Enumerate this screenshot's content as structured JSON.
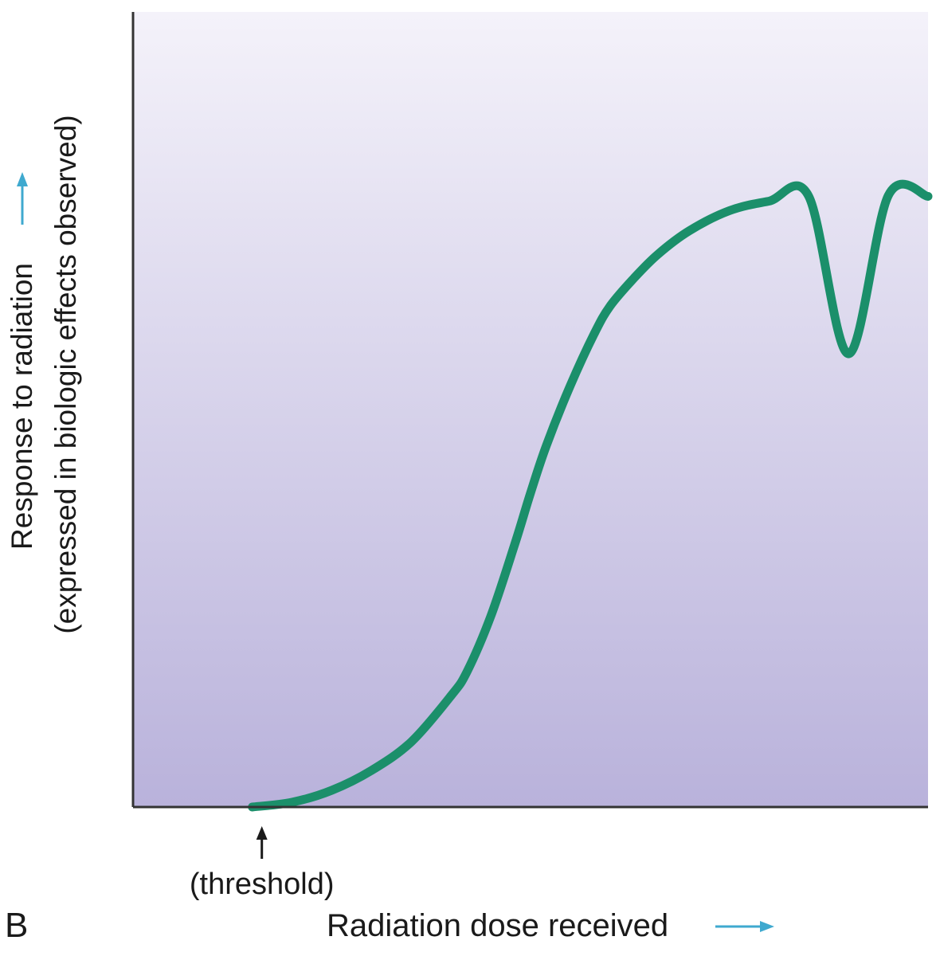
{
  "chart_data": {
    "type": "line",
    "panel_label": "B",
    "title": "",
    "ylabel": [
      "Response to radiation",
      "(expressed in biologic effects observed)"
    ],
    "xlabel": "Radiation dose received",
    "annotation": {
      "text": "(threshold)",
      "x": 15
    },
    "xlim": [
      0,
      100
    ],
    "ylim": [
      0,
      100
    ],
    "grid": false,
    "legend": "none",
    "axis_arrow_color": "#3fa9cf",
    "plot_background": {
      "top": "#f4f2fa",
      "bottom": "#b9b2db"
    },
    "series": [
      {
        "color": "#1b8f6a",
        "x": [
          15,
          20,
          25,
          30,
          35,
          40,
          42,
          45,
          48,
          50,
          52,
          55,
          58,
          60,
          63,
          66,
          70,
          75,
          80,
          85,
          90,
          95,
          100
        ],
        "y": [
          0,
          0.6,
          2.1,
          4.6,
          8.2,
          14,
          17,
          24,
          33,
          39.5,
          45.5,
          53,
          59.5,
          63,
          66.5,
          69.5,
          72.5,
          75,
          76.2,
          76.8,
          57.0,
          76.9,
          76.8
        ]
      }
    ]
  }
}
